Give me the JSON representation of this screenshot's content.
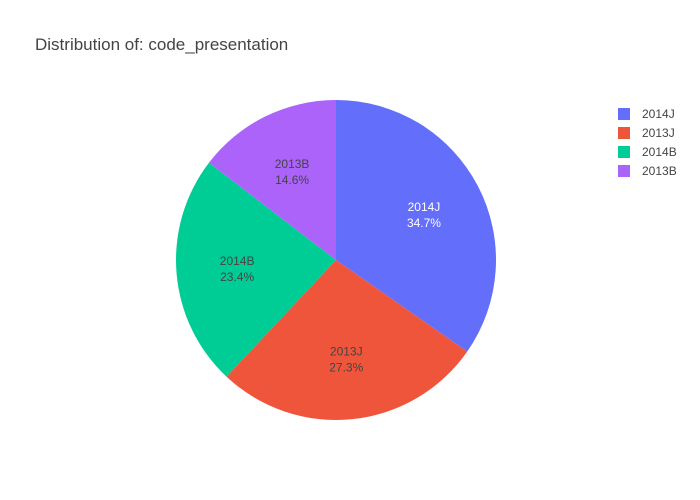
{
  "chart_data": {
    "type": "pie",
    "title": "Distribution of: code_presentation",
    "slices": [
      {
        "label": "2014J",
        "value": 34.7,
        "color": "#636efa",
        "text_color": "#ffffff"
      },
      {
        "label": "2013J",
        "value": 27.3,
        "color": "#ef553b",
        "text_color": "#444444"
      },
      {
        "label": "2014B",
        "value": 23.4,
        "color": "#00cc96",
        "text_color": "#444444"
      },
      {
        "label": "2013B",
        "value": 14.6,
        "color": "#ab63fa",
        "text_color": "#444444"
      }
    ],
    "legend": {
      "placement": "top-right",
      "items": [
        "2014J",
        "2013J",
        "2014B",
        "2013B"
      ]
    }
  }
}
